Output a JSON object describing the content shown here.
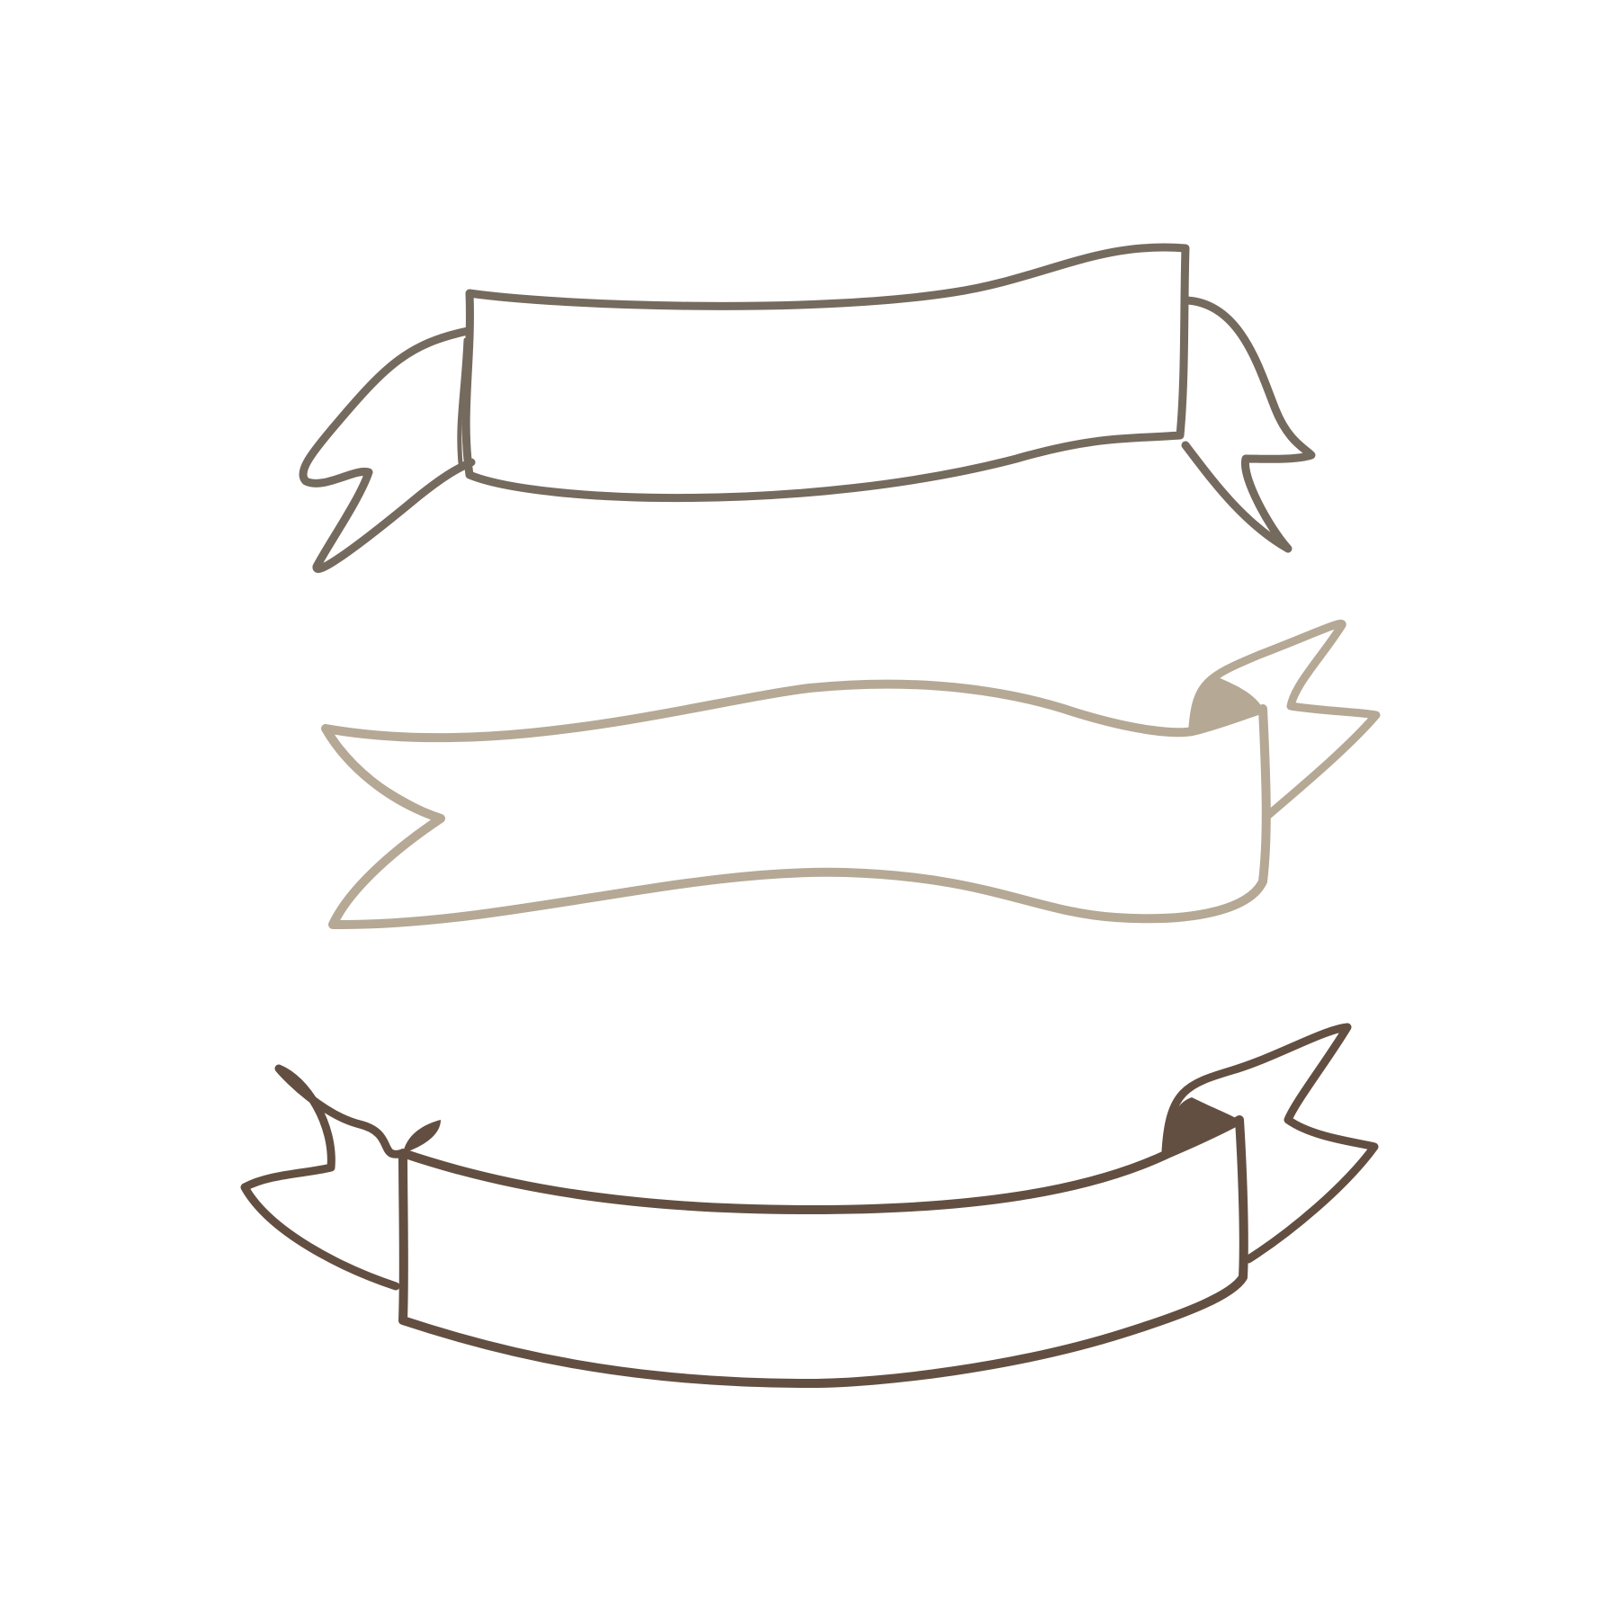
{
  "background": "#ffffff",
  "ribbons": [
    {
      "name": "ribbon-top",
      "color": "#756a5e"
    },
    {
      "name": "ribbon-middle",
      "color": "#b5a895"
    },
    {
      "name": "ribbon-bottom",
      "color": "#634f41"
    }
  ]
}
